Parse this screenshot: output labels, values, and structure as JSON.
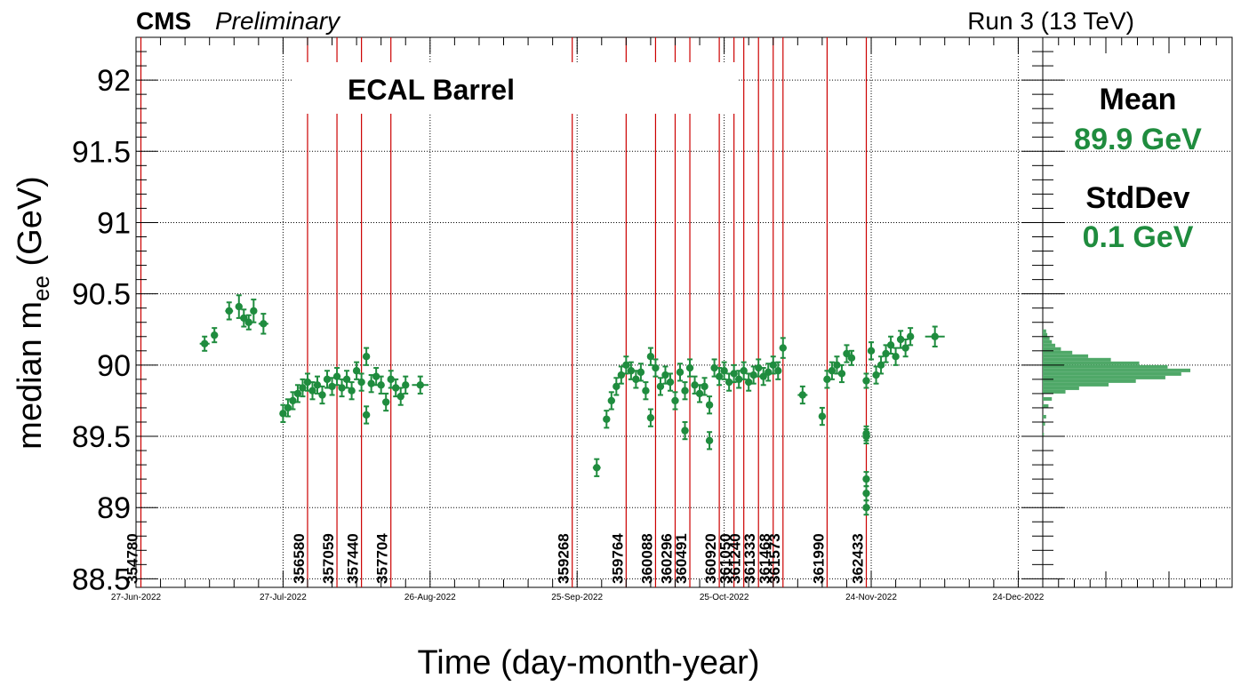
{
  "header": {
    "experiment": "CMS",
    "status": "Preliminary",
    "energy": "Run 3 (13 TeV)"
  },
  "label_box": {
    "text": "ECAL Barrel"
  },
  "stats": {
    "mean_label": "Mean",
    "mean_value": "89.9 GeV",
    "stddev_label": "StdDev",
    "stddev_value": "0.1 GeV"
  },
  "chart_data": [
    {
      "type": "scatter",
      "xlabel": "Time (day-month-year)",
      "ylabel_main": "median m",
      "ylabel_sub": "ee",
      "ylabel_unit": " (GeV)",
      "xlim": [
        "2022-06-27",
        "2022-12-29"
      ],
      "ylim": [
        88.44,
        92.3
      ],
      "grid": true,
      "colors": {
        "data": "#1f8c3e",
        "run_line": "#cc0000",
        "hist": "#4fa868"
      },
      "x_ticks": [
        {
          "date": "2022-06-27",
          "label": "27-Jun-2022"
        },
        {
          "date": "2022-07-27",
          "label": "27-Jul-2022"
        },
        {
          "date": "2022-08-26",
          "label": "26-Aug-2022"
        },
        {
          "date": "2022-09-25",
          "label": "25-Sep-2022"
        },
        {
          "date": "2022-10-25",
          "label": "25-Oct-2022"
        },
        {
          "date": "2022-11-24",
          "label": "24-Nov-2022"
        },
        {
          "date": "2022-12-24",
          "label": "24-Dec-2022"
        }
      ],
      "y_ticks": [
        {
          "value": 88.5,
          "label": "88.5"
        },
        {
          "value": 89,
          "label": "89"
        },
        {
          "value": 89.5,
          "label": "89.5"
        },
        {
          "value": 90,
          "label": "90"
        },
        {
          "value": 90.5,
          "label": "90.5"
        },
        {
          "value": 91,
          "label": "91"
        },
        {
          "value": 91.5,
          "label": "91.5"
        },
        {
          "value": 92,
          "label": "92"
        }
      ],
      "run_markers": [
        {
          "run": "354780",
          "date": "2022-06-28"
        },
        {
          "run": "356580",
          "date": "2022-08-01"
        },
        {
          "run": "357059",
          "date": "2022-08-07"
        },
        {
          "run": "357440",
          "date": "2022-08-12"
        },
        {
          "run": "357704",
          "date": "2022-08-18"
        },
        {
          "run": "359268",
          "date": "2022-09-24"
        },
        {
          "run": "359764",
          "date": "2022-10-05"
        },
        {
          "run": "360088",
          "date": "2022-10-11"
        },
        {
          "run": "360296",
          "date": "2022-10-15"
        },
        {
          "run": "360491",
          "date": "2022-10-18"
        },
        {
          "run": "360920",
          "date": "2022-10-24"
        },
        {
          "run": "361050",
          "date": "2022-10-27"
        },
        {
          "run": "361240",
          "date": "2022-10-29"
        },
        {
          "run": "361333",
          "date": "2022-11-01"
        },
        {
          "run": "361468",
          "date": "2022-11-04"
        },
        {
          "run": "361573",
          "date": "2022-11-06"
        },
        {
          "run": "361990",
          "date": "2022-11-15"
        },
        {
          "run": "362433",
          "date": "2022-11-23"
        }
      ],
      "points": [
        {
          "x": "2022-07-11",
          "y": 90.15,
          "xerr": 1.0,
          "yerr": 0.05
        },
        {
          "x": "2022-07-13",
          "y": 90.21,
          "xerr": 0.4,
          "yerr": 0.05
        },
        {
          "x": "2022-07-16",
          "y": 90.38,
          "xerr": 0.8,
          "yerr": 0.06
        },
        {
          "x": "2022-07-18",
          "y": 90.41,
          "xerr": 0.6,
          "yerr": 0.08
        },
        {
          "x": "2022-07-19",
          "y": 90.33,
          "xerr": 0.5,
          "yerr": 0.06
        },
        {
          "x": "2022-07-20",
          "y": 90.3,
          "xerr": 0.5,
          "yerr": 0.05
        },
        {
          "x": "2022-07-21",
          "y": 90.38,
          "xerr": 0.3,
          "yerr": 0.08
        },
        {
          "x": "2022-07-23",
          "y": 90.29,
          "xerr": 1.0,
          "yerr": 0.07
        },
        {
          "x": "2022-07-27",
          "y": 89.66,
          "xerr": 0.3,
          "yerr": 0.06
        },
        {
          "x": "2022-07-28",
          "y": 89.7,
          "xerr": 0.3,
          "yerr": 0.06
        },
        {
          "x": "2022-07-29",
          "y": 89.75,
          "xerr": 0.3,
          "yerr": 0.06
        },
        {
          "x": "2022-07-30",
          "y": 89.8,
          "xerr": 0.3,
          "yerr": 0.06
        },
        {
          "x": "2022-07-31",
          "y": 89.84,
          "xerr": 0.3,
          "yerr": 0.06
        },
        {
          "x": "2022-08-01",
          "y": 89.88,
          "xerr": 0.3,
          "yerr": 0.06
        },
        {
          "x": "2022-08-02",
          "y": 89.82,
          "xerr": 0.3,
          "yerr": 0.06
        },
        {
          "x": "2022-08-03",
          "y": 89.86,
          "xerr": 0.3,
          "yerr": 0.06
        },
        {
          "x": "2022-08-04",
          "y": 89.79,
          "xerr": 0.3,
          "yerr": 0.06
        },
        {
          "x": "2022-08-05",
          "y": 89.9,
          "xerr": 0.3,
          "yerr": 0.06
        },
        {
          "x": "2022-08-06",
          "y": 89.85,
          "xerr": 0.3,
          "yerr": 0.06
        },
        {
          "x": "2022-08-07",
          "y": 89.92,
          "xerr": 0.3,
          "yerr": 0.06
        },
        {
          "x": "2022-08-08",
          "y": 89.84,
          "xerr": 0.3,
          "yerr": 0.06
        },
        {
          "x": "2022-08-09",
          "y": 89.9,
          "xerr": 0.3,
          "yerr": 0.06
        },
        {
          "x": "2022-08-10",
          "y": 89.82,
          "xerr": 0.3,
          "yerr": 0.06
        },
        {
          "x": "2022-08-11",
          "y": 89.96,
          "xerr": 0.3,
          "yerr": 0.06
        },
        {
          "x": "2022-08-12",
          "y": 89.88,
          "xerr": 0.3,
          "yerr": 0.06
        },
        {
          "x": "2022-08-13",
          "y": 89.65,
          "xerr": 0.3,
          "yerr": 0.06
        },
        {
          "x": "2022-08-13",
          "y": 90.06,
          "xerr": 0.3,
          "yerr": 0.06
        },
        {
          "x": "2022-08-14",
          "y": 89.87,
          "xerr": 0.3,
          "yerr": 0.06
        },
        {
          "x": "2022-08-15",
          "y": 89.92,
          "xerr": 0.3,
          "yerr": 0.06
        },
        {
          "x": "2022-08-16",
          "y": 89.86,
          "xerr": 0.3,
          "yerr": 0.06
        },
        {
          "x": "2022-08-17",
          "y": 89.74,
          "xerr": 0.3,
          "yerr": 0.06
        },
        {
          "x": "2022-08-18",
          "y": 89.9,
          "xerr": 0.3,
          "yerr": 0.06
        },
        {
          "x": "2022-08-19",
          "y": 89.84,
          "xerr": 0.3,
          "yerr": 0.06
        },
        {
          "x": "2022-08-20",
          "y": 89.78,
          "xerr": 0.3,
          "yerr": 0.06
        },
        {
          "x": "2022-08-21",
          "y": 89.86,
          "xerr": 0.3,
          "yerr": 0.06
        },
        {
          "x": "2022-08-24",
          "y": 89.86,
          "xerr": 1.7,
          "yerr": 0.06
        },
        {
          "x": "2022-09-29",
          "y": 89.28,
          "xerr": 0.8,
          "yerr": 0.06
        },
        {
          "x": "2022-10-01",
          "y": 89.62,
          "xerr": 0.2,
          "yerr": 0.06
        },
        {
          "x": "2022-10-02",
          "y": 89.75,
          "xerr": 0.2,
          "yerr": 0.06
        },
        {
          "x": "2022-10-03",
          "y": 89.85,
          "xerr": 0.2,
          "yerr": 0.06
        },
        {
          "x": "2022-10-04",
          "y": 89.93,
          "xerr": 0.2,
          "yerr": 0.06
        },
        {
          "x": "2022-10-05",
          "y": 90.0,
          "xerr": 0.2,
          "yerr": 0.06
        },
        {
          "x": "2022-10-06",
          "y": 89.96,
          "xerr": 0.2,
          "yerr": 0.06
        },
        {
          "x": "2022-10-07",
          "y": 89.9,
          "xerr": 0.2,
          "yerr": 0.06
        },
        {
          "x": "2022-10-08",
          "y": 89.95,
          "xerr": 0.2,
          "yerr": 0.06
        },
        {
          "x": "2022-10-09",
          "y": 89.82,
          "xerr": 0.2,
          "yerr": 0.06
        },
        {
          "x": "2022-10-10",
          "y": 89.63,
          "xerr": 0.2,
          "yerr": 0.06
        },
        {
          "x": "2022-10-10",
          "y": 90.06,
          "xerr": 0.2,
          "yerr": 0.06
        },
        {
          "x": "2022-10-11",
          "y": 89.98,
          "xerr": 0.2,
          "yerr": 0.06
        },
        {
          "x": "2022-10-12",
          "y": 89.85,
          "xerr": 0.2,
          "yerr": 0.06
        },
        {
          "x": "2022-10-13",
          "y": 89.93,
          "xerr": 0.2,
          "yerr": 0.06
        },
        {
          "x": "2022-10-14",
          "y": 89.88,
          "xerr": 0.2,
          "yerr": 0.06
        },
        {
          "x": "2022-10-15",
          "y": 89.75,
          "xerr": 0.2,
          "yerr": 0.06
        },
        {
          "x": "2022-10-16",
          "y": 89.95,
          "xerr": 0.2,
          "yerr": 0.06
        },
        {
          "x": "2022-10-17",
          "y": 89.54,
          "xerr": 0.2,
          "yerr": 0.06
        },
        {
          "x": "2022-10-17",
          "y": 89.82,
          "xerr": 0.2,
          "yerr": 0.06
        },
        {
          "x": "2022-10-18",
          "y": 89.98,
          "xerr": 0.2,
          "yerr": 0.06
        },
        {
          "x": "2022-10-19",
          "y": 89.86,
          "xerr": 0.2,
          "yerr": 0.06
        },
        {
          "x": "2022-10-20",
          "y": 89.8,
          "xerr": 0.2,
          "yerr": 0.06
        },
        {
          "x": "2022-10-21",
          "y": 89.85,
          "xerr": 0.2,
          "yerr": 0.06
        },
        {
          "x": "2022-10-22",
          "y": 89.47,
          "xerr": 0.2,
          "yerr": 0.06
        },
        {
          "x": "2022-10-22",
          "y": 89.72,
          "xerr": 0.2,
          "yerr": 0.06
        },
        {
          "x": "2022-10-23",
          "y": 89.98,
          "xerr": 0.2,
          "yerr": 0.06
        },
        {
          "x": "2022-10-24",
          "y": 89.92,
          "xerr": 0.2,
          "yerr": 0.06
        },
        {
          "x": "2022-10-25",
          "y": 89.96,
          "xerr": 0.2,
          "yerr": 0.06
        },
        {
          "x": "2022-10-26",
          "y": 89.88,
          "xerr": 0.2,
          "yerr": 0.06
        },
        {
          "x": "2022-10-27",
          "y": 89.94,
          "xerr": 0.2,
          "yerr": 0.06
        },
        {
          "x": "2022-10-28",
          "y": 89.9,
          "xerr": 0.2,
          "yerr": 0.06
        },
        {
          "x": "2022-10-29",
          "y": 89.96,
          "xerr": 0.2,
          "yerr": 0.06
        },
        {
          "x": "2022-10-30",
          "y": 89.88,
          "xerr": 0.2,
          "yerr": 0.06
        },
        {
          "x": "2022-10-31",
          "y": 89.93,
          "xerr": 0.2,
          "yerr": 0.06
        },
        {
          "x": "2022-11-01",
          "y": 89.98,
          "xerr": 0.2,
          "yerr": 0.06
        },
        {
          "x": "2022-11-02",
          "y": 89.92,
          "xerr": 0.2,
          "yerr": 0.06
        },
        {
          "x": "2022-11-03",
          "y": 89.95,
          "xerr": 0.2,
          "yerr": 0.06
        },
        {
          "x": "2022-11-04",
          "y": 90.0,
          "xerr": 0.2,
          "yerr": 0.06
        },
        {
          "x": "2022-11-05",
          "y": 89.96,
          "xerr": 0.2,
          "yerr": 0.06
        },
        {
          "x": "2022-11-06",
          "y": 90.12,
          "xerr": 0.2,
          "yerr": 0.07
        },
        {
          "x": "2022-11-10",
          "y": 89.79,
          "xerr": 1.0,
          "yerr": 0.06
        },
        {
          "x": "2022-11-14",
          "y": 89.64,
          "xerr": 0.2,
          "yerr": 0.06
        },
        {
          "x": "2022-11-15",
          "y": 89.9,
          "xerr": 0.2,
          "yerr": 0.06
        },
        {
          "x": "2022-11-16",
          "y": 89.96,
          "xerr": 0.2,
          "yerr": 0.06
        },
        {
          "x": "2022-11-17",
          "y": 90.0,
          "xerr": 0.2,
          "yerr": 0.06
        },
        {
          "x": "2022-11-18",
          "y": 89.94,
          "xerr": 0.2,
          "yerr": 0.06
        },
        {
          "x": "2022-11-19",
          "y": 90.08,
          "xerr": 0.2,
          "yerr": 0.06
        },
        {
          "x": "2022-11-20",
          "y": 90.05,
          "xerr": 0.4,
          "yerr": 0.05
        },
        {
          "x": "2022-11-23",
          "y": 89.89,
          "xerr": 0.1,
          "yerr": 0.05
        },
        {
          "x": "2022-11-23",
          "y": 89.52,
          "xerr": 0.1,
          "yerr": 0.05
        },
        {
          "x": "2022-11-23",
          "y": 89.5,
          "xerr": 0.1,
          "yerr": 0.05
        },
        {
          "x": "2022-11-23",
          "y": 89.2,
          "xerr": 0.1,
          "yerr": 0.05
        },
        {
          "x": "2022-11-23",
          "y": 89.1,
          "xerr": 0.1,
          "yerr": 0.05
        },
        {
          "x": "2022-11-23",
          "y": 89.0,
          "xerr": 0.1,
          "yerr": 0.05
        },
        {
          "x": "2022-11-24",
          "y": 90.1,
          "xerr": 0.2,
          "yerr": 0.06
        },
        {
          "x": "2022-11-25",
          "y": 89.93,
          "xerr": 0.2,
          "yerr": 0.06
        },
        {
          "x": "2022-11-26",
          "y": 90.0,
          "xerr": 0.2,
          "yerr": 0.06
        },
        {
          "x": "2022-11-27",
          "y": 90.08,
          "xerr": 0.2,
          "yerr": 0.06
        },
        {
          "x": "2022-11-28",
          "y": 90.14,
          "xerr": 0.2,
          "yerr": 0.06
        },
        {
          "x": "2022-11-29",
          "y": 90.06,
          "xerr": 0.2,
          "yerr": 0.06
        },
        {
          "x": "2022-11-30",
          "y": 90.18,
          "xerr": 0.2,
          "yerr": 0.06
        },
        {
          "x": "2022-12-01",
          "y": 90.12,
          "xerr": 0.2,
          "yerr": 0.06
        },
        {
          "x": "2022-12-02",
          "y": 90.2,
          "xerr": 0.2,
          "yerr": 0.06
        },
        {
          "x": "2022-12-07",
          "y": 90.2,
          "xerr": 2.0,
          "yerr": 0.07
        }
      ]
    },
    {
      "type": "bar",
      "orientation": "horizontal",
      "ylim": [
        88.44,
        92.3
      ],
      "bin_width": 0.025,
      "bins": [
        {
          "y": 89.5,
          "count": 1
        },
        {
          "y": 89.575,
          "count": 2
        },
        {
          "y": 89.625,
          "count": 3
        },
        {
          "y": 89.7,
          "count": 5
        },
        {
          "y": 89.75,
          "count": 8
        },
        {
          "y": 89.8,
          "count": 20
        },
        {
          "y": 89.825,
          "count": 32
        },
        {
          "y": 89.85,
          "count": 58
        },
        {
          "y": 89.875,
          "count": 82
        },
        {
          "y": 89.9,
          "count": 108
        },
        {
          "y": 89.925,
          "count": 122
        },
        {
          "y": 89.95,
          "count": 130
        },
        {
          "y": 89.975,
          "count": 110
        },
        {
          "y": 90.0,
          "count": 85
        },
        {
          "y": 90.025,
          "count": 60
        },
        {
          "y": 90.05,
          "count": 40
        },
        {
          "y": 90.075,
          "count": 26
        },
        {
          "y": 90.1,
          "count": 16
        },
        {
          "y": 90.125,
          "count": 11
        },
        {
          "y": 90.15,
          "count": 8
        },
        {
          "y": 90.175,
          "count": 6
        },
        {
          "y": 90.2,
          "count": 4
        },
        {
          "y": 90.225,
          "count": 3
        }
      ]
    }
  ]
}
